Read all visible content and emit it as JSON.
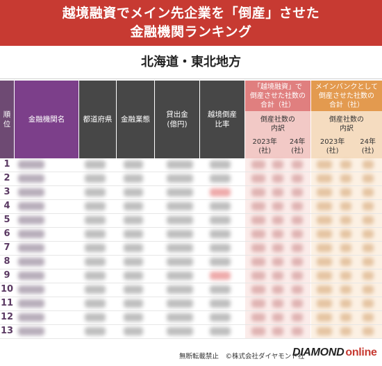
{
  "title_line1": "越境融資でメイン先企業を「倒産」させた",
  "title_line2": "金融機関ランキング",
  "region": "北海道・東北地方",
  "headers": {
    "rank": [
      "順",
      "位"
    ],
    "name": "金融機関名",
    "pref": "都道府県",
    "type": "金融業態",
    "loan": [
      "貸出金",
      "(億円)"
    ],
    "rate": [
      "越境倒産",
      "比率"
    ]
  },
  "group_cross": {
    "title": [
      "「越境融資」で",
      "倒産させた社数の",
      "合計（社）"
    ],
    "breakdown": [
      "倒産社数の",
      "内訳"
    ],
    "years": [
      "2023年",
      "24年"
    ],
    "units": [
      "(社)",
      "(社)"
    ]
  },
  "group_main": {
    "title": [
      "メインバンクとして",
      "倒産させた社数の",
      "合計（社）"
    ],
    "breakdown": [
      "倒産社数の",
      "内訳"
    ],
    "years": [
      "2023年",
      "24年"
    ],
    "units": [
      "(社)",
      "(社)"
    ]
  },
  "ranks": [
    "1",
    "2",
    "3",
    "4",
    "5",
    "6",
    "7",
    "8",
    "9",
    "10",
    "11",
    "12",
    "13"
  ],
  "highlight_rows": [
    2,
    8
  ],
  "footer": {
    "credit": "無断転載禁止　©株式会社ダイヤモンド社",
    "logo_main": "DIAMOND",
    "logo_sub": "online"
  },
  "colors": {
    "banner": "#c73a32",
    "cross_header": "#e07f7f",
    "main_header": "#e39a4f"
  }
}
